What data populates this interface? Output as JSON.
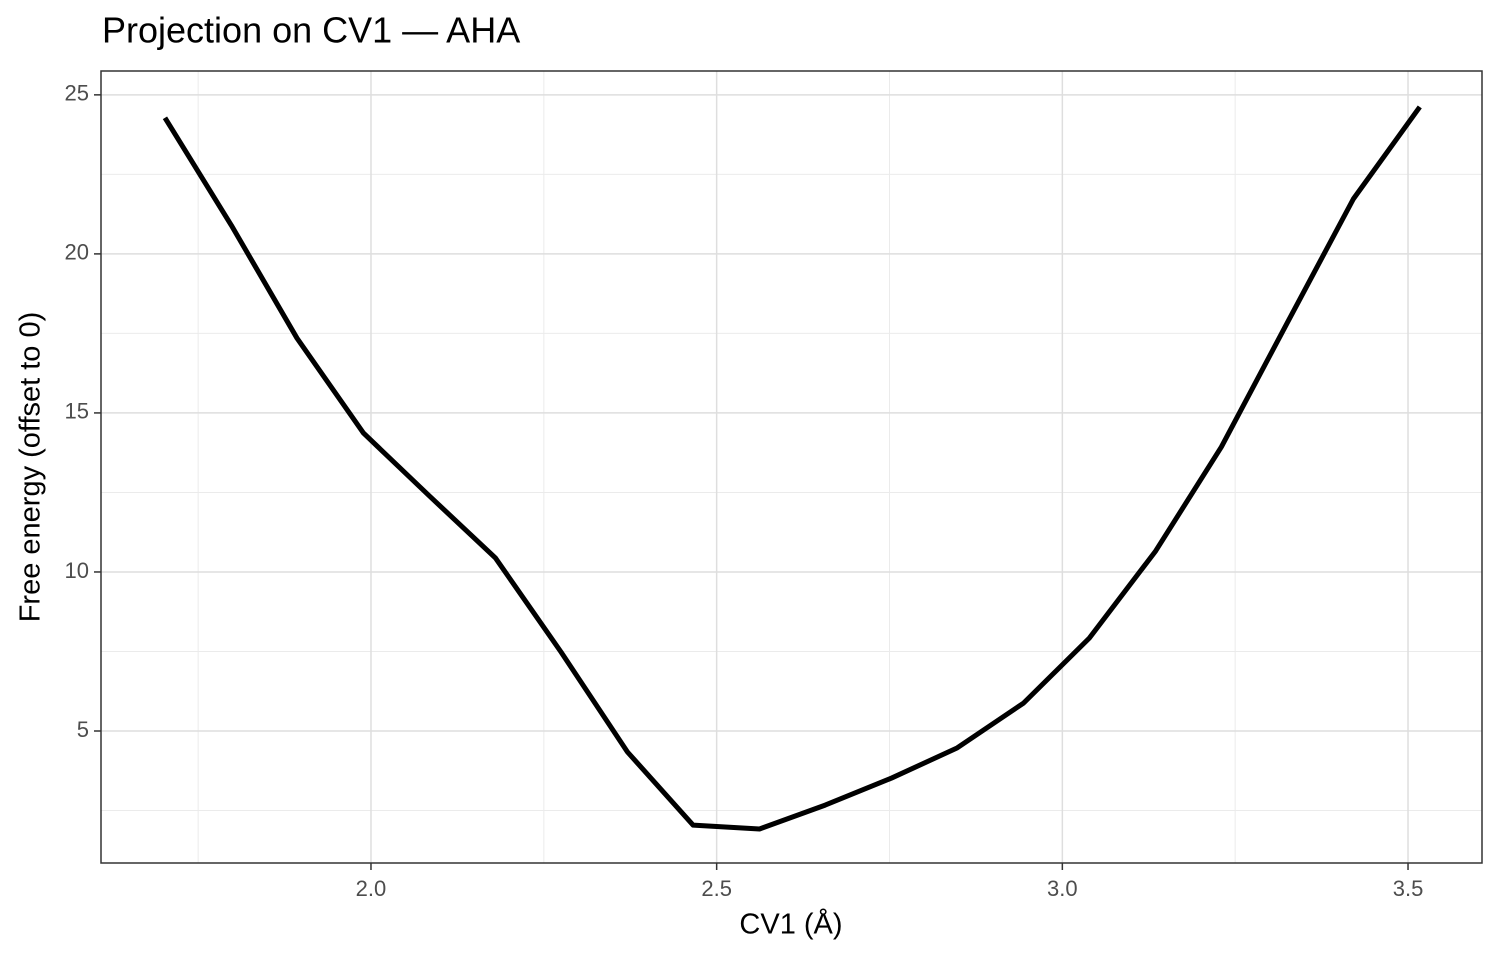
{
  "chart_data": {
    "type": "line",
    "title": "Projection on CV1 — AHA",
    "x_label": "CV1 (Å)",
    "y_label": "Free energy (offset to 0)",
    "x": [
      1.702,
      1.798,
      1.893,
      1.989,
      2.084,
      2.18,
      2.275,
      2.371,
      2.466,
      2.562,
      2.657,
      2.753,
      2.848,
      2.944,
      3.039,
      3.135,
      3.23,
      3.326,
      3.421,
      3.517
    ],
    "series": [
      {
        "name": "AHA",
        "color": "#000000",
        "values": [
          24.28,
          20.9,
          17.35,
          14.37,
          12.4,
          10.44,
          7.48,
          4.34,
          2.04,
          1.92,
          2.67,
          3.52,
          4.47,
          5.88,
          7.92,
          10.66,
          13.93,
          17.86,
          21.73,
          24.62
        ]
      }
    ],
    "xlim": [
      1.6095,
      3.607
    ],
    "ylim": [
      0.85,
      25.75
    ],
    "xticks": [
      {
        "value": 2,
        "label": "2.0"
      },
      2.5,
      {
        "value": 3,
        "label": "3.0"
      },
      3.5
    ],
    "yticks": [
      5,
      10,
      15,
      20,
      25
    ],
    "x_minor_ticks": [
      1.75,
      2.25,
      2.75,
      3.25
    ],
    "y_minor_ticks": [
      2.5,
      7.5,
      12.5,
      17.5,
      22.5
    ],
    "grid": true
  }
}
